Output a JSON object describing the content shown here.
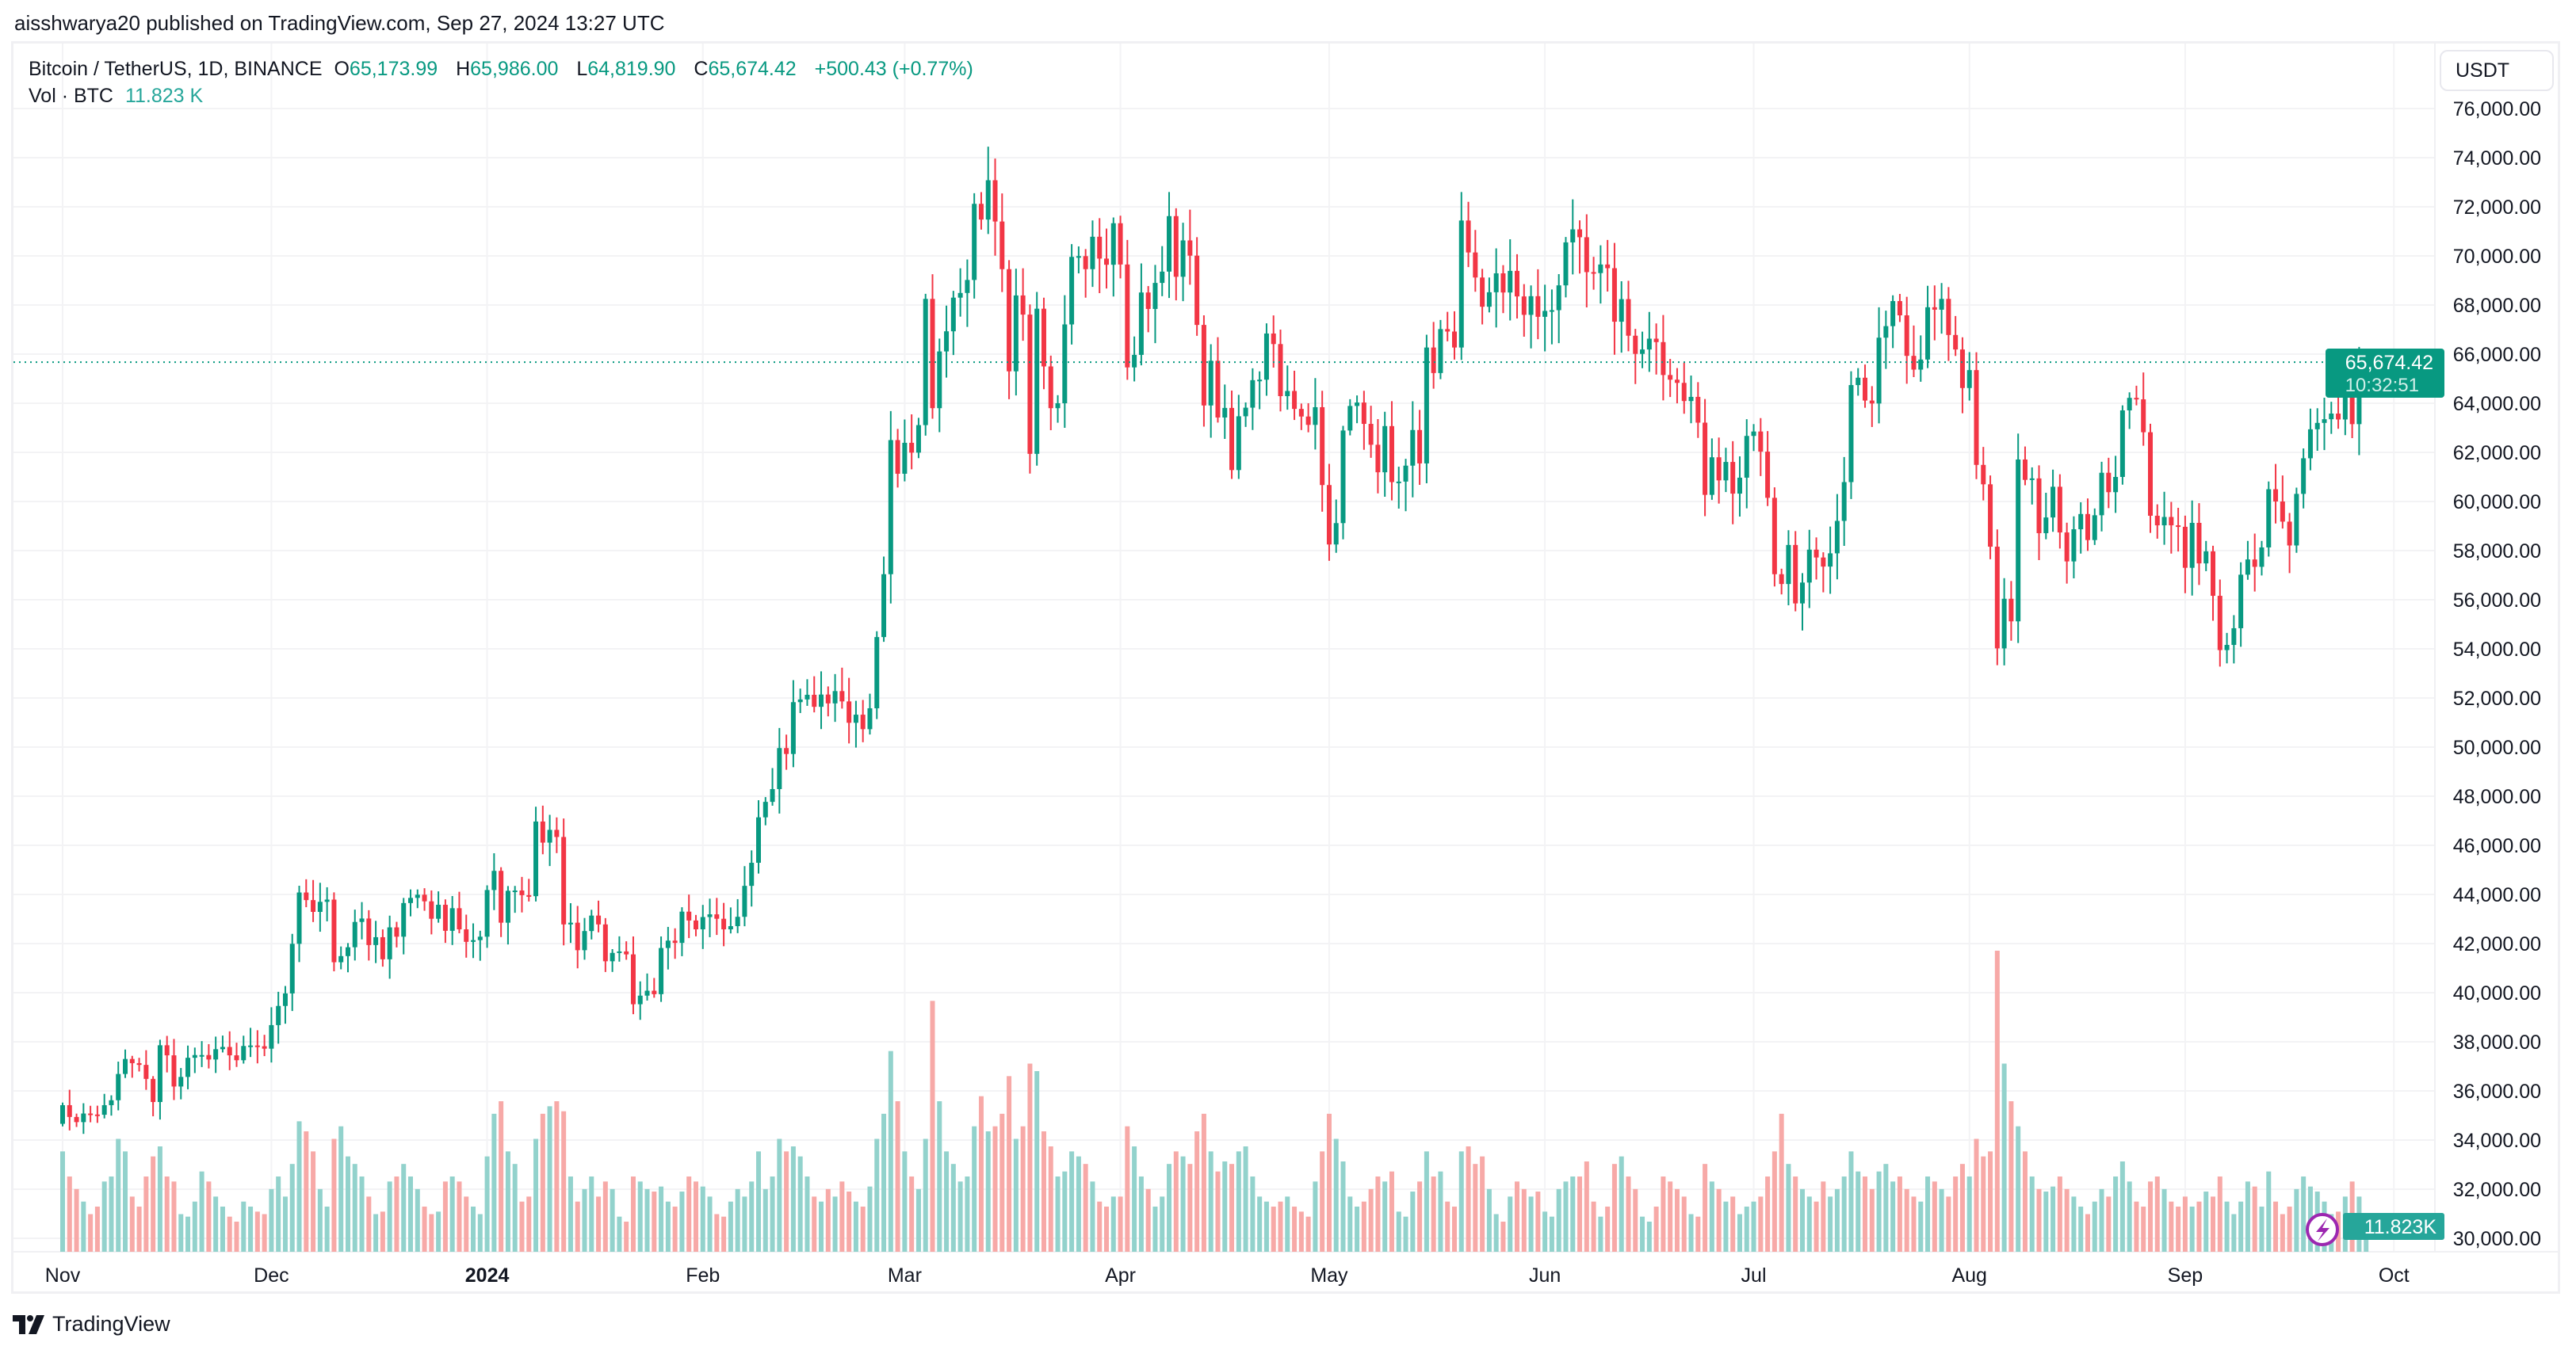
{
  "publish_line": "aisshwarya20 published on TradingView.com, Sep 27, 2024 13:27 UTC",
  "legend": {
    "symbol": "Bitcoin / TetherUS, 1D, BINANCE",
    "o_label": "O",
    "o": "65,173.99",
    "h_label": "H",
    "h": "65,986.00",
    "l_label": "L",
    "l": "64,819.90",
    "c_label": "C",
    "c": "65,674.42",
    "change": "+500.43 (+0.77%)",
    "vol_label": "Vol · BTC",
    "vol": "11.823 K"
  },
  "currency": "USDT",
  "last_price_label": "65,674.42",
  "countdown": "10:32:51",
  "last_volume_label": "11.823K",
  "footer": {
    "brand": "TradingView"
  },
  "colors": {
    "up": "#089981",
    "down": "#f23645",
    "vol_up": "#92d2cc",
    "vol_down": "#f7a9a7",
    "badge": "#089981",
    "vol_badge": "#26a69a",
    "lightning": "#9c27b0"
  },
  "chart_data": {
    "type": "candlestick",
    "start_date": "2023-11-01",
    "end_date": "2024-09-27",
    "first_open": 34660,
    "last_candle": {
      "open": 65173.99,
      "high": 65986.0,
      "low": 64819.9,
      "close": 65674.42
    },
    "ylim": [
      30000,
      76000
    ],
    "y_ticks": [
      "76,000.00",
      "74,000.00",
      "72,000.00",
      "70,000.00",
      "68,000.00",
      "66,000.00",
      "64,000.00",
      "62,000.00",
      "60,000.00",
      "58,000.00",
      "56,000.00",
      "54,000.00",
      "52,000.00",
      "50,000.00",
      "48,000.00",
      "46,000.00",
      "44,000.00",
      "42,000.00",
      "40,000.00",
      "38,000.00",
      "36,000.00",
      "34,000.00",
      "32,000.00",
      "30,000.00"
    ],
    "x_ticks": [
      {
        "label": "Nov",
        "date": "2023-11-01"
      },
      {
        "label": "Dec",
        "date": "2023-12-01"
      },
      {
        "label": "2024",
        "date": "2024-01-01",
        "bold": true
      },
      {
        "label": "Feb",
        "date": "2024-02-01"
      },
      {
        "label": "Mar",
        "date": "2024-03-01"
      },
      {
        "label": "Apr",
        "date": "2024-04-01"
      },
      {
        "label": "May",
        "date": "2024-05-01"
      },
      {
        "label": "Jun",
        "date": "2024-06-01"
      },
      {
        "label": "Jul",
        "date": "2024-07-01"
      },
      {
        "label": "Aug",
        "date": "2024-08-01"
      },
      {
        "label": "Sep",
        "date": "2024-09-01"
      },
      {
        "label": "Oct",
        "date": "2024-10-01"
      }
    ],
    "grid": true,
    "close": [
      35420,
      34940,
      34730,
      35080,
      35040,
      35030,
      35420,
      35620,
      36690,
      37300,
      37130,
      37060,
      36490,
      35550,
      37860,
      37450,
      36180,
      36570,
      37350,
      37460,
      37460,
      37280,
      37700,
      37790,
      37450,
      37250,
      37830,
      37850,
      37820,
      37720,
      38680,
      39460,
      39970,
      41990,
      44080,
      43770,
      43290,
      43700,
      43790,
      41240,
      41490,
      41850,
      42880,
      43020,
      41940,
      42260,
      41360,
      42660,
      42280,
      43650,
      43860,
      43990,
      43720,
      43010,
      43580,
      42520,
      43440,
      42580,
      42070,
      42140,
      42280,
      44180,
      44960,
      42850,
      44150,
      44160,
      43970,
      43930,
      46970,
      46110,
      46630,
      46340,
      42780,
      42850,
      41730,
      42510,
      43140,
      42780,
      41280,
      41620,
      41680,
      41560,
      39530,
      39880,
      40080,
      39940,
      41820,
      42120,
      42030,
      43300,
      42940,
      42580,
      43080,
      43190,
      43010,
      42580,
      42710,
      43090,
      44350,
      45290,
      47140,
      47770,
      48290,
      49960,
      49720,
      51830,
      51940,
      52130,
      51640,
      52140,
      51780,
      52280,
      51860,
      50990,
      51320,
      50730,
      51580,
      54480,
      57040,
      62500,
      61130,
      62390,
      61990,
      63110,
      68250,
      63800,
      66110,
      66930,
      68300,
      68490,
      69020,
      72120,
      71480,
      73080,
      71400,
      69460,
      65300,
      68390,
      67610,
      61940,
      67850,
      65500,
      63800,
      64000,
      67210,
      69960,
      69990,
      69460,
      70780,
      69890,
      69640,
      71330,
      69650,
      65460,
      65970,
      68510,
      67840,
      68900,
      69360,
      71620,
      69150,
      70630,
      70010,
      67190,
      63910,
      65730,
      63420,
      63810,
      61280,
      63470,
      63820,
      64940,
      64960,
      66840,
      66410,
      64290,
      64500,
      63770,
      63460,
      63120,
      63840,
      60670,
      58250,
      59120,
      62890,
      63890,
      64030,
      63160,
      62310,
      61190,
      63070,
      60790,
      60810,
      61460,
      62910,
      61550,
      66270,
      65230,
      67020,
      66920,
      66270,
      71440,
      70140,
      69120,
      67930,
      68520,
      69290,
      68510,
      69390,
      68350,
      67600,
      68360,
      67520,
      67760,
      67790,
      68800,
      70550,
      71080,
      70760,
      69340,
      69300,
      69650,
      69500,
      67320,
      68240,
      66750,
      66010,
      66190,
      66630,
      66490,
      65150,
      64960,
      64830,
      64090,
      64260,
      63210,
      60270,
      61800,
      60860,
      61610,
      60320,
      60970,
      62670,
      62850,
      62030,
      60150,
      57040,
      56640,
      58230,
      55850,
      56700,
      58040,
      57720,
      57350,
      57890,
      59210,
      60790,
      64740,
      65040,
      64110,
      63990,
      66670,
      67140,
      68160,
      67580,
      65930,
      65370,
      65780,
      67910,
      67810,
      68250,
      66780,
      66190,
      64620,
      65350,
      61490,
      60700,
      58160,
      54020,
      56040,
      55120,
      61710,
      60880,
      60940,
      58710,
      59350,
      60600,
      58740,
      57560,
      58870,
      59490,
      58430,
      59440,
      61170,
      60380,
      61000,
      63710,
      64220,
      64160,
      62820,
      59420,
      59030,
      59370,
      59030,
      58970,
      57300,
      59130,
      57480,
      57970,
      56160,
      53950,
      54160,
      54840,
      57020,
      57640,
      57340,
      58130,
      60500,
      60000,
      59180,
      58210,
      60310,
      61760,
      62940,
      63200,
      63350,
      63580,
      63340,
      64260,
      63150,
      65173.99,
      65674.42
    ],
    "volume_k_btc": [
      40,
      30,
      25,
      20,
      15,
      18,
      28,
      30,
      45,
      40,
      22,
      18,
      30,
      38,
      42,
      30,
      28,
      15,
      14,
      20,
      32,
      28,
      22,
      18,
      14,
      12,
      20,
      18,
      16,
      15,
      25,
      30,
      22,
      35,
      52,
      48,
      40,
      25,
      18,
      45,
      50,
      38,
      35,
      30,
      22,
      15,
      16,
      28,
      30,
      35,
      30,
      25,
      18,
      15,
      16,
      28,
      30,
      28,
      22,
      18,
      15,
      38,
      55,
      60,
      40,
      35,
      20,
      22,
      45,
      55,
      58,
      60,
      56,
      30,
      20,
      25,
      30,
      22,
      28,
      25,
      14,
      12,
      30,
      28,
      25,
      24,
      26,
      20,
      18,
      24,
      30,
      28,
      26,
      22,
      15,
      14,
      20,
      25,
      22,
      28,
      40,
      25,
      30,
      45,
      40,
      42,
      38,
      30,
      22,
      20,
      25,
      22,
      28,
      24,
      20,
      18,
      26,
      45,
      55,
      80,
      60,
      40,
      30,
      25,
      45,
      100,
      60,
      40,
      35,
      28,
      30,
      50,
      62,
      48,
      50,
      55,
      70,
      45,
      50,
      75,
      72,
      48,
      42,
      30,
      32,
      40,
      38,
      35,
      28,
      20,
      18,
      22,
      22,
      50,
      42,
      30,
      25,
      18,
      22,
      35,
      40,
      38,
      35,
      48,
      55,
      40,
      32,
      36,
      35,
      40,
      42,
      30,
      22,
      20,
      18,
      20,
      22,
      18,
      16,
      14,
      28,
      40,
      55,
      45,
      36,
      22,
      18,
      20,
      25,
      30,
      28,
      32,
      16,
      14,
      24,
      28,
      40,
      30,
      32,
      20,
      18,
      40,
      42,
      35,
      38,
      25,
      15,
      12,
      22,
      28,
      25,
      22,
      24,
      16,
      14,
      25,
      28,
      30,
      30,
      36,
      20,
      14,
      18,
      35,
      38,
      30,
      25,
      14,
      12,
      18,
      30,
      28,
      25,
      22,
      15,
      14,
      35,
      28,
      25,
      20,
      22,
      15,
      18,
      20,
      22,
      30,
      40,
      55,
      35,
      30,
      25,
      22,
      20,
      28,
      22,
      25,
      30,
      40,
      32,
      30,
      25,
      32,
      35,
      28,
      30,
      25,
      22,
      20,
      30,
      28,
      25,
      22,
      30,
      35,
      30,
      45,
      38,
      40,
      120,
      75,
      60,
      50,
      40,
      30,
      25,
      24,
      26,
      30,
      25,
      22,
      18,
      15,
      20,
      25,
      22,
      30,
      36,
      28,
      20,
      18,
      28,
      30,
      25,
      20,
      18,
      22,
      18,
      20,
      24,
      22,
      30,
      20,
      15,
      20,
      28,
      26,
      18,
      32,
      20,
      15,
      18,
      25,
      30,
      26,
      24,
      20,
      15,
      16,
      22,
      28,
      22,
      11.823
    ]
  }
}
